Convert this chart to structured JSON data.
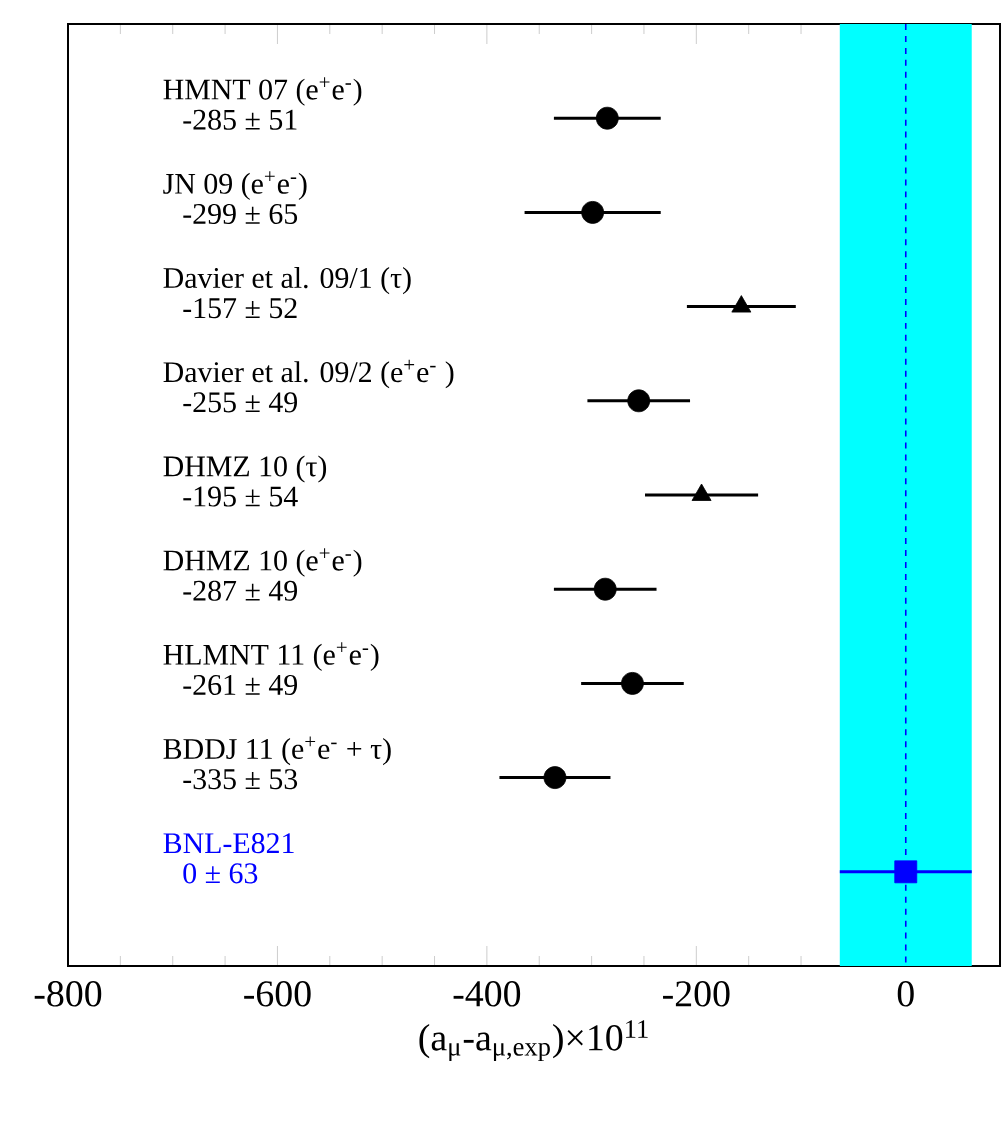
{
  "chart_data": {
    "type": "scatter",
    "orientation": "horizontal",
    "xlabel": "(a$_{μ}$-a$_{μ,exp}$)×10$^{11}$",
    "categories": [
      "HMNT 07 (e$^{+}$e$^{-}$)",
      "JN 09 (e$^{+}$e$^{-}$)",
      "Davier et al. 09/1 (τ)",
      "Davier et al. 09/2 (e$^{+}$e$^{-}$ )",
      "DHMZ 10 (τ)",
      "DHMZ 10 (e$^{+}$e$^{-}$)",
      "HLMNT 11 (e$^{+}$e$^{-}$)",
      "BDDJ 11 (e$^{+}$e$^{-}$ + τ)",
      "BNL-E821"
    ],
    "series": [
      {
        "color": "#000000",
        "marker": "circle",
        "values": [
          -285,
          -299,
          null,
          -255,
          null,
          -287,
          -261,
          -335,
          null
        ],
        "errors": [
          51,
          65,
          null,
          49,
          null,
          49,
          49,
          53,
          null
        ]
      },
      {
        "color": "#000000",
        "marker": "triangle",
        "values": [
          null,
          null,
          -157,
          null,
          -195,
          null,
          null,
          null,
          null
        ],
        "errors": [
          null,
          null,
          52,
          null,
          54,
          null,
          null,
          null,
          null
        ]
      },
      {
        "color": "#0000ff",
        "marker": "square",
        "values": [
          null,
          null,
          null,
          null,
          null,
          null,
          null,
          null,
          0
        ],
        "errors": [
          null,
          null,
          null,
          null,
          null,
          null,
          null,
          null,
          63
        ]
      }
    ],
    "annotations": [
      "-285 ± 51",
      "-299 ± 65",
      "-157 ± 52",
      "-255 ± 49",
      "-195 ± 54",
      "-287 ± 49",
      "-261 ± 49",
      "-335 ± 53",
      "0 ± 63"
    ],
    "xlim": [
      -800,
      90
    ],
    "xticks": [
      -800,
      -600,
      -400,
      -200,
      0
    ],
    "bands": [
      {
        "axis": "x",
        "from": -63,
        "to": 63,
        "color": "#00ffff"
      }
    ],
    "ref_lines": [
      {
        "axis": "x",
        "value": 0,
        "color": "#0000ff",
        "line_style": "dashed"
      }
    ]
  }
}
